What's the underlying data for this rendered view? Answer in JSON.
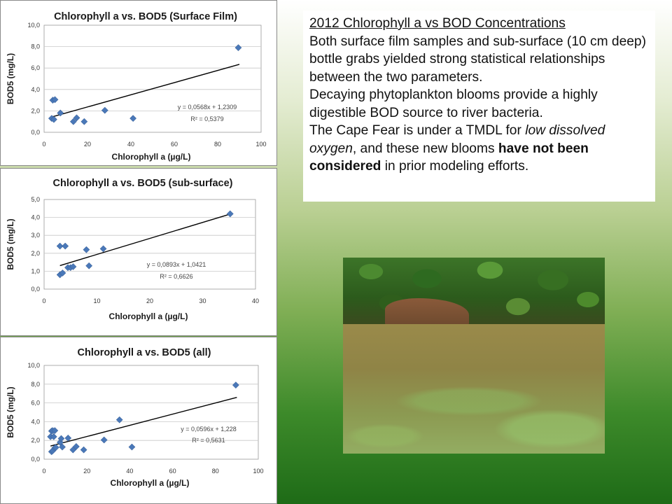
{
  "chart_data": [
    {
      "type": "scatter",
      "title": "Chlorophyll a vs. BOD5 (Surface Film)",
      "xlabel": "Chlorophyll a (µg/L)",
      "ylabel": "BOD5 (mg/L)",
      "xlim": [
        0,
        100
      ],
      "ylim": [
        0,
        10
      ],
      "x_ticks": [
        "0",
        "20",
        "40",
        "60",
        "80",
        "100"
      ],
      "y_ticks": [
        "0,0",
        "2,0",
        "4,0",
        "6,0",
        "8,0",
        "10,0"
      ],
      "grid": "horizontal",
      "series": [
        {
          "x": [
            3.5,
            4.5,
            4.0,
            5.0,
            7.5,
            13.5,
            15.0,
            18.5,
            28.0,
            41.0,
            89.5
          ],
          "y": [
            1.3,
            1.2,
            3.0,
            3.05,
            1.8,
            1.0,
            1.35,
            1.0,
            2.05,
            1.3,
            7.9
          ]
        }
      ],
      "trendline": {
        "slope": 0.0568,
        "intercept": 1.2309,
        "x_range": [
          4,
          90
        ]
      },
      "equation_text": "y = 0,0568x + 1,2309",
      "r2_text": "R² = 0,5379",
      "marker_color": "#4a78b8"
    },
    {
      "type": "scatter",
      "title": "Chlorophyll a vs. BOD5 (sub-surface)",
      "xlabel": "Chlorophyll a (µg/L)",
      "ylabel": "BOD5 (mg/L)",
      "xlim": [
        0,
        40
      ],
      "ylim": [
        0,
        5
      ],
      "x_ticks": [
        "0",
        "10",
        "20",
        "30",
        "40"
      ],
      "y_ticks": [
        "0,0",
        "1,0",
        "2,0",
        "3,0",
        "4,0",
        "5,0"
      ],
      "grid": "horizontal",
      "series": [
        {
          "x": [
            3.0,
            3.0,
            3.5,
            4.0,
            4.5,
            5.0,
            5.5,
            8.0,
            8.5,
            11.2,
            35.2
          ],
          "y": [
            2.4,
            0.8,
            0.9,
            2.4,
            1.2,
            1.2,
            1.25,
            2.2,
            1.3,
            2.25,
            4.2
          ]
        }
      ],
      "trendline": {
        "slope": 0.0893,
        "intercept": 1.0421,
        "x_range": [
          3,
          35
        ]
      },
      "equation_text": "y = 0,0893x + 1,0421",
      "r2_text": "R² = 0,6626",
      "marker_color": "#4a78b8"
    },
    {
      "type": "scatter",
      "title": "Chlorophyll a vs. BOD5 (all)",
      "xlabel": "Chlorophyll a (µg/L)",
      "ylabel": "BOD5 (mg/L)",
      "xlim": [
        0,
        100
      ],
      "ylim": [
        0,
        10
      ],
      "x_ticks": [
        "0",
        "20",
        "40",
        "60",
        "80",
        "100"
      ],
      "y_ticks": [
        "0,0",
        "2,0",
        "4,0",
        "6,0",
        "8,0",
        "10,0"
      ],
      "grid": "horizontal",
      "series": [
        {
          "x": [
            3.0,
            3.5,
            3.5,
            4.0,
            4.0,
            4.5,
            5.0,
            5.0,
            5.5,
            7.5,
            8.0,
            8.5,
            11.2,
            13.5,
            15.0,
            18.5,
            28.0,
            35.2,
            41.0,
            89.5
          ],
          "y": [
            2.4,
            0.8,
            3.0,
            0.9,
            3.05,
            2.4,
            1.2,
            3.05,
            1.25,
            1.8,
            2.2,
            1.3,
            2.25,
            1.0,
            1.35,
            1.0,
            2.05,
            4.2,
            1.3,
            7.9
          ]
        }
      ],
      "trendline": {
        "slope": 0.0596,
        "intercept": 1.228,
        "x_range": [
          3,
          90
        ]
      },
      "equation_text": "y = 0,0596x + 1,228",
      "r2_text": "R² = 0,5631",
      "marker_color": "#4a78b8"
    }
  ],
  "text_panel": {
    "heading": "2012 Chlorophyll a vs BOD Concentrations",
    "para1": "Both surface film samples and sub-surface (10 cm deep) bottle grabs yielded strong statistical relationships between the two parameters.",
    "para2": "Decaying phytoplankton blooms provide a highly digestible BOD source to river bacteria.",
    "para3_part1": "The Cape Fear is under a TMDL for ",
    "para3_italic": "low dissolved oxygen",
    "para3_part2": ", and these new blooms ",
    "para3_bold": "have not been considered",
    "para3_part3": " in prior modeling efforts."
  }
}
